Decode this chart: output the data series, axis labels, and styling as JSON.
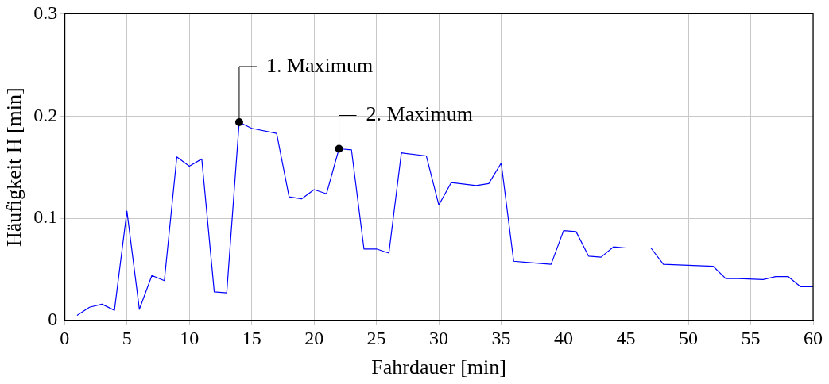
{
  "chart_data": {
    "type": "line",
    "xlabel": "Fahrdauer [min]",
    "ylabel": "Häufigkeit H [min]",
    "x": [
      1,
      2,
      3,
      4,
      5,
      6,
      7,
      8,
      9,
      10,
      11,
      12,
      13,
      14,
      15,
      17,
      18,
      19,
      20,
      21,
      22,
      23,
      24,
      25,
      26,
      27,
      29,
      30,
      31,
      33,
      34,
      35,
      36,
      37,
      39,
      40,
      41,
      42,
      43,
      44,
      45,
      47,
      48,
      52,
      53,
      54,
      56,
      57,
      58,
      59,
      60
    ],
    "series": [
      {
        "color": "#0000ff",
        "values": [
          0.005,
          0.013,
          0.016,
          0.01,
          0.107,
          0.011,
          0.044,
          0.039,
          0.16,
          0.151,
          0.158,
          0.028,
          0.027,
          0.194,
          0.188,
          0.183,
          0.121,
          0.119,
          0.128,
          0.124,
          0.168,
          0.167,
          0.07,
          0.07,
          0.066,
          0.164,
          0.161,
          0.113,
          0.135,
          0.132,
          0.134,
          0.154,
          0.058,
          0.057,
          0.055,
          0.088,
          0.087,
          0.063,
          0.062,
          0.072,
          0.071,
          0.071,
          0.055,
          0.053,
          0.041,
          0.041,
          0.04,
          0.043,
          0.043,
          0.033,
          0.033
        ]
      }
    ],
    "xlim": [
      0,
      60
    ],
    "xticks": [
      0,
      5,
      10,
      15,
      20,
      25,
      30,
      35,
      40,
      45,
      50,
      55,
      60
    ],
    "ylim": [
      0,
      0.3
    ],
    "yticks": [
      0,
      0.1,
      0.2,
      0.3
    ],
    "grid": true,
    "legend": false,
    "marker": "none",
    "line_style": "solid",
    "annotations": [
      {
        "text": "1. Maximum",
        "x": 14,
        "y": 0.194
      },
      {
        "text": "2. Maximum",
        "x": 22,
        "y": 0.168
      }
    ]
  }
}
